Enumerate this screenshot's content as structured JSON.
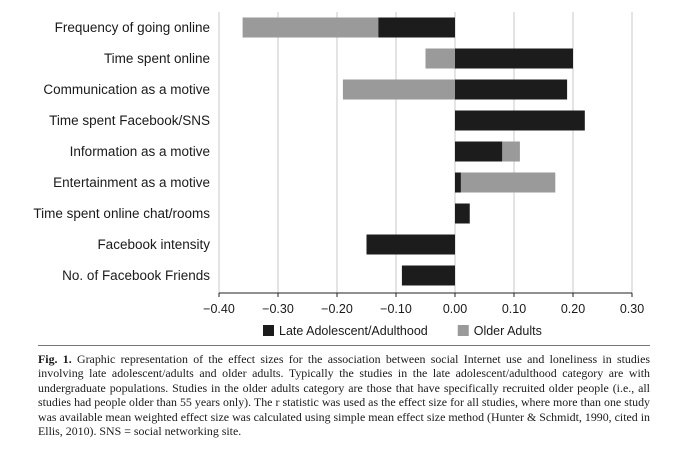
{
  "chart_data": {
    "type": "bar",
    "orientation": "horizontal",
    "categories": [
      "Frequency of going online",
      "Time spent online",
      "Communication as a motive",
      "Time spent Facebook/SNS",
      "Information as a motive",
      "Entertainment as a motive",
      "Time spent online chat/rooms",
      "Facebook intensity",
      "No. of Facebook Friends"
    ],
    "series": [
      {
        "name": "Late Adolescent/Adulthood",
        "color": "#1c1c1c",
        "values": [
          -0.13,
          0.2,
          0.19,
          0.22,
          0.08,
          0.01,
          0.025,
          -0.15,
          -0.09
        ]
      },
      {
        "name": "Older Adults",
        "color": "#9a9a9a",
        "values": [
          -0.36,
          -0.05,
          -0.19,
          null,
          0.11,
          0.17,
          null,
          null,
          null
        ]
      }
    ],
    "xlim": [
      -0.4,
      0.3
    ],
    "xticks": [
      -0.4,
      -0.3,
      -0.2,
      -0.1,
      0.0,
      0.1,
      0.2,
      0.3
    ],
    "xtick_labels": [
      "−0.40",
      "−0.30",
      "−0.20",
      "−0.10",
      "0.00",
      "0.10",
      "0.20",
      "0.30"
    ],
    "grid": true,
    "legend_position": "bottom",
    "title": "",
    "xlabel": "",
    "ylabel": ""
  },
  "caption": {
    "label": "Fig. 1.",
    "text": "Graphic representation of the effect sizes for the association between social Internet use and loneliness in studies involving late adolescent/adults and older adults. Typically the studies in the late adolescent/adulthood category are with undergraduate populations. Studies in the older adults category are those that have specifically recruited older people (i.e., all studies had people older than 55 years only). The r statistic was used as the effect size for all studies, where more than one study was available mean weighted effect size was calculated using simple mean effect size method (Hunter & Schmidt, 1990, cited in Ellis, 2010). SNS = social networking site."
  }
}
